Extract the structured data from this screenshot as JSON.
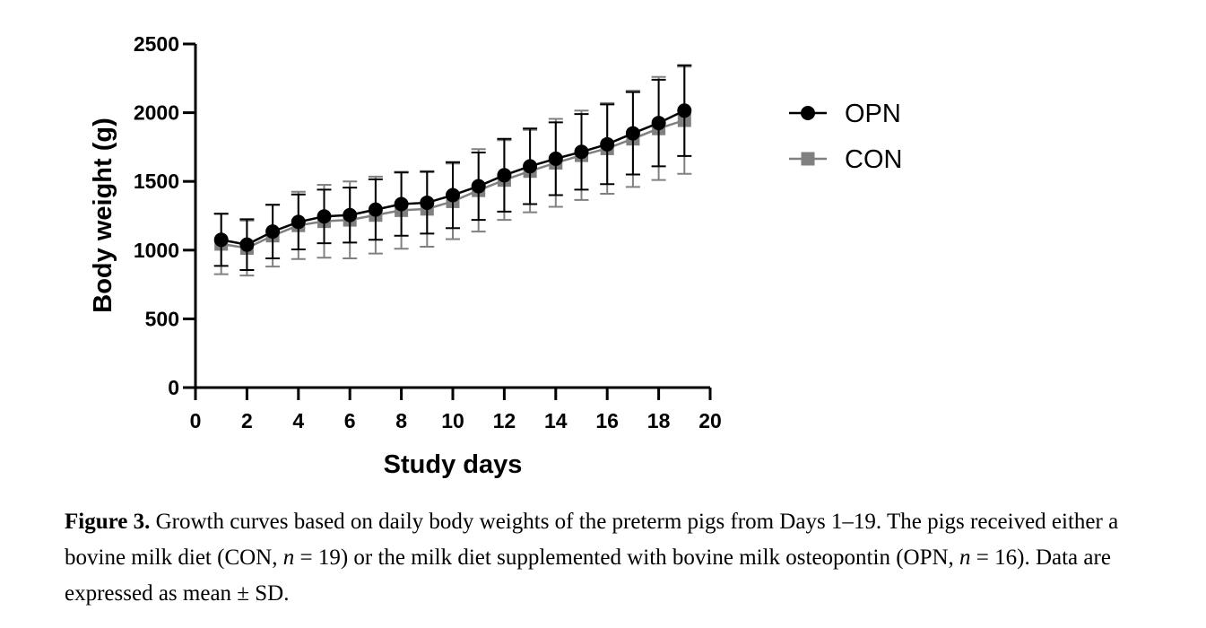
{
  "chart_data": {
    "type": "line",
    "xlabel": "Study days",
    "ylabel": "Body weight (g)",
    "xlim": [
      0,
      20
    ],
    "ylim": [
      0,
      2500
    ],
    "xticks": [
      0,
      2,
      4,
      6,
      8,
      10,
      12,
      14,
      16,
      18,
      20
    ],
    "yticks": [
      0,
      500,
      1000,
      1500,
      2000,
      2500
    ],
    "legend_position": "right",
    "grid": false,
    "x": [
      1,
      2,
      3,
      4,
      5,
      6,
      7,
      8,
      9,
      10,
      11,
      12,
      13,
      14,
      15,
      16,
      17,
      18,
      19
    ],
    "series": [
      {
        "name": "OPN",
        "marker": "circle",
        "color": "#000000",
        "values": [
          1075,
          1040,
          1135,
          1205,
          1245,
          1255,
          1295,
          1335,
          1345,
          1400,
          1465,
          1545,
          1610,
          1665,
          1715,
          1770,
          1850,
          1925,
          2015
        ],
        "sd": [
          190,
          185,
          195,
          200,
          195,
          200,
          220,
          230,
          225,
          240,
          245,
          265,
          275,
          265,
          275,
          290,
          300,
          315,
          330
        ]
      },
      {
        "name": "CON",
        "marker": "square",
        "color": "#808080",
        "values": [
          1045,
          1015,
          1105,
          1180,
          1210,
          1220,
          1255,
          1290,
          1300,
          1355,
          1435,
          1510,
          1575,
          1635,
          1690,
          1740,
          1810,
          1885,
          1945
        ],
        "sd": [
          220,
          200,
          225,
          245,
          265,
          280,
          280,
          280,
          275,
          275,
          300,
          290,
          300,
          320,
          325,
          330,
          350,
          375,
          390
        ]
      }
    ]
  },
  "caption": {
    "label": "Figure 3.",
    "text_1": " Growth curves based on daily body weights of the preterm pigs from Days 1–19. The pigs received either a bovine milk diet (CON, ",
    "n_symbol": "n",
    "text_2": " = 19) or the milk diet supplemented with bovine milk osteopontin (OPN, ",
    "text_3": " = 16). Data are expressed as mean ± SD."
  }
}
